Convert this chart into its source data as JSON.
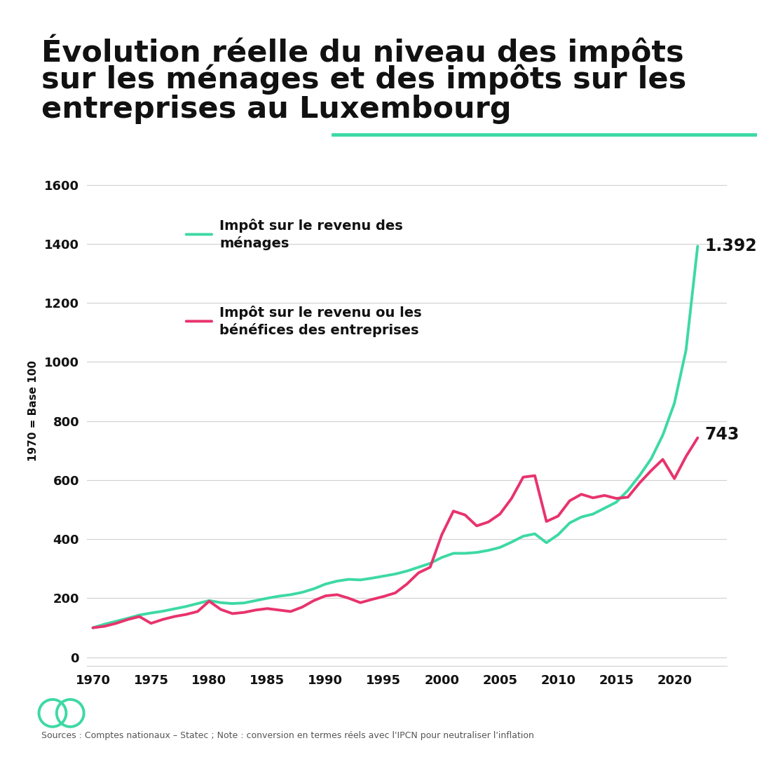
{
  "title_line1": "Évolution réelle du niveau des impôts",
  "title_line2": "sur les ménages et des impôts sur les",
  "title_line3": "entreprises au Luxembourg",
  "ylabel": "1970 = Base 100",
  "source": "Sources : Comptes nationaux – Statec ; Note : conversion en termes réels avec l'IPCN pour neutraliser l'inflation",
  "legend_households": "Impôt sur le revenu des\nménages",
  "legend_companies": "Impôt sur le revenu ou les\nbénéfices des entreprises",
  "end_label_households": "1.392",
  "end_label_companies": "743",
  "color_households": "#3dd9a4",
  "color_companies": "#e8336d",
  "bg_color": "#ffffff",
  "ylim_min": -30,
  "ylim_max": 1700,
  "xlim_min": 1969.5,
  "xlim_max": 2024.5,
  "yticks": [
    0,
    200,
    400,
    600,
    800,
    1000,
    1200,
    1400,
    1600
  ],
  "xticks": [
    1970,
    1975,
    1980,
    1985,
    1990,
    1995,
    2000,
    2005,
    2010,
    2015,
    2020
  ],
  "years": [
    1970,
    1971,
    1972,
    1973,
    1974,
    1975,
    1976,
    1977,
    1978,
    1979,
    1980,
    1981,
    1982,
    1983,
    1984,
    1985,
    1986,
    1987,
    1988,
    1989,
    1990,
    1991,
    1992,
    1993,
    1994,
    1995,
    1996,
    1997,
    1998,
    1999,
    2000,
    2001,
    2002,
    2003,
    2004,
    2005,
    2006,
    2007,
    2008,
    2009,
    2010,
    2011,
    2012,
    2013,
    2014,
    2015,
    2016,
    2017,
    2018,
    2019,
    2020,
    2021,
    2022
  ],
  "households": [
    100,
    112,
    122,
    132,
    143,
    150,
    156,
    164,
    172,
    182,
    192,
    185,
    182,
    184,
    192,
    200,
    207,
    212,
    220,
    232,
    248,
    258,
    264,
    262,
    268,
    275,
    282,
    292,
    305,
    318,
    338,
    352,
    352,
    355,
    362,
    372,
    390,
    410,
    418,
    388,
    415,
    455,
    475,
    485,
    505,
    525,
    565,
    615,
    672,
    752,
    860,
    1040,
    1392
  ],
  "companies": [
    100,
    105,
    115,
    128,
    138,
    115,
    128,
    138,
    145,
    155,
    190,
    162,
    148,
    152,
    160,
    165,
    160,
    155,
    170,
    192,
    208,
    212,
    200,
    185,
    196,
    206,
    218,
    248,
    286,
    305,
    415,
    495,
    482,
    445,
    458,
    485,
    538,
    610,
    615,
    460,
    478,
    530,
    552,
    540,
    548,
    538,
    542,
    590,
    632,
    670,
    605,
    680,
    743
  ]
}
